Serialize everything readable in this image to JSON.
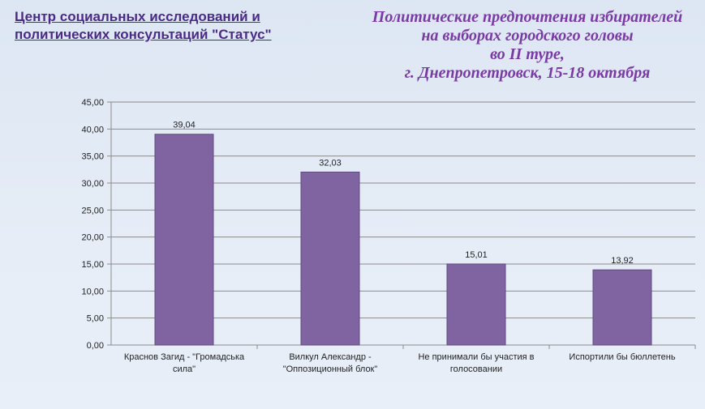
{
  "header": {
    "org_line1": "Центр социальных исследований и",
    "org_line2": "политических консультаций \"Статус\""
  },
  "chart_data": {
    "type": "bar",
    "title_lines": [
      "Политические  предпочтения  избирателей",
      "на выборах городского головы",
      "во II туре,",
      "г. Днепропетровск,  15-18 октября"
    ],
    "categories": [
      [
        "Краснов Загид - \"Громадська",
        "сила\""
      ],
      [
        "Вилкул Александр -",
        "\"Оппозиционный блок\""
      ],
      [
        "Не принимали бы участия в",
        "голосовании"
      ],
      [
        "Испортили бы бюллетень"
      ]
    ],
    "values": [
      39.04,
      32.03,
      15.01,
      13.92
    ],
    "value_labels": [
      "39,04",
      "32,03",
      "15,01",
      "13,92"
    ],
    "ylim": [
      0,
      45
    ],
    "yticks": [
      "0,00",
      "5,00",
      "10,00",
      "15,00",
      "20,00",
      "25,00",
      "30,00",
      "35,00",
      "40,00",
      "45,00"
    ],
    "grid": true,
    "colors": {
      "bar": "#8064a2",
      "bar_edge": "#5f4a80",
      "grid": "#8c8c8c"
    }
  }
}
